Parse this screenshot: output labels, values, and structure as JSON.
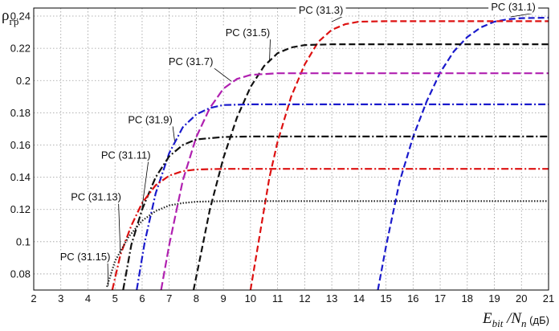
{
  "chart_data": {
    "type": "line",
    "title": "",
    "ylabel": "ρ",
    "ylabel_sub": "гр",
    "xlabel_parts": [
      "E",
      "bit",
      " /N",
      "n",
      " (дБ)"
    ],
    "xlim": [
      2,
      21
    ],
    "ylim": [
      0.07,
      0.245
    ],
    "x_ticks": [
      2,
      3,
      4,
      5,
      6,
      7,
      8,
      9,
      10,
      11,
      12,
      13,
      14,
      15,
      16,
      17,
      18,
      19,
      20,
      21
    ],
    "y_ticks": [
      0.08,
      0.1,
      0.12,
      0.14,
      0.16,
      0.18,
      0.2,
      0.22,
      0.24
    ],
    "y_tick_labels": [
      "0.08",
      "0.1",
      "0.12",
      "0.14",
      "0.16",
      "0.18",
      "0.2",
      "0.22",
      "0.24"
    ],
    "grid": true,
    "series": [
      {
        "name": "РС (31.1)",
        "color": "#1a1acc",
        "dash": "8,4",
        "points": [
          [
            14.7,
            0.07
          ],
          [
            15.0,
            0.097
          ],
          [
            15.5,
            0.137
          ],
          [
            16.0,
            0.165
          ],
          [
            16.5,
            0.187
          ],
          [
            17.0,
            0.205
          ],
          [
            17.5,
            0.218
          ],
          [
            18.0,
            0.227
          ],
          [
            18.5,
            0.233
          ],
          [
            19.0,
            0.2365
          ],
          [
            19.5,
            0.238
          ],
          [
            20.0,
            0.2387
          ],
          [
            21.0,
            0.239
          ]
        ]
      },
      {
        "name": "РС (31.3)",
        "color": "#dd1111",
        "dash": "8,4",
        "points": [
          [
            10.0,
            0.07
          ],
          [
            10.3,
            0.1
          ],
          [
            10.7,
            0.14
          ],
          [
            11.0,
            0.162
          ],
          [
            11.5,
            0.19
          ],
          [
            12.0,
            0.21
          ],
          [
            12.5,
            0.224
          ],
          [
            13.0,
            0.2315
          ],
          [
            13.5,
            0.235
          ],
          [
            14.0,
            0.2365
          ],
          [
            15.0,
            0.2368
          ],
          [
            21.0,
            0.2368
          ]
        ]
      },
      {
        "name": "РС (31.5)",
        "color": "#111111",
        "dash": "8,4",
        "points": [
          [
            7.9,
            0.07
          ],
          [
            8.2,
            0.095
          ],
          [
            8.5,
            0.12
          ],
          [
            9.0,
            0.152
          ],
          [
            9.5,
            0.177
          ],
          [
            10.0,
            0.196
          ],
          [
            10.5,
            0.209
          ],
          [
            11.0,
            0.217
          ],
          [
            11.5,
            0.2205
          ],
          [
            12.0,
            0.222
          ],
          [
            13.0,
            0.2225
          ],
          [
            21.0,
            0.2225
          ]
        ]
      },
      {
        "name": "РС (31.7)",
        "color": "#b020b0",
        "dash": "10,4",
        "points": [
          [
            6.7,
            0.07
          ],
          [
            7.0,
            0.098
          ],
          [
            7.5,
            0.138
          ],
          [
            8.0,
            0.165
          ],
          [
            8.5,
            0.183
          ],
          [
            9.0,
            0.195
          ],
          [
            9.5,
            0.201
          ],
          [
            10.0,
            0.2035
          ],
          [
            11.0,
            0.2045
          ],
          [
            21.0,
            0.2045
          ]
        ]
      },
      {
        "name": "РС (31.9)",
        "color": "#1a1acc",
        "dash": "9,3,2,3",
        "points": [
          [
            5.8,
            0.07
          ],
          [
            6.1,
            0.1
          ],
          [
            6.5,
            0.13
          ],
          [
            7.0,
            0.155
          ],
          [
            7.5,
            0.171
          ],
          [
            8.0,
            0.179
          ],
          [
            8.5,
            0.183
          ],
          [
            9.0,
            0.1848
          ],
          [
            10.0,
            0.1852
          ],
          [
            21.0,
            0.1852
          ]
        ]
      },
      {
        "name": "РС (31.11)",
        "color": "#111111",
        "dash": "9,3,2,3",
        "points": [
          [
            5.3,
            0.07
          ],
          [
            5.6,
            0.098
          ],
          [
            6.0,
            0.12
          ],
          [
            6.5,
            0.14
          ],
          [
            7.0,
            0.153
          ],
          [
            7.5,
            0.16
          ],
          [
            8.0,
            0.1635
          ],
          [
            9.0,
            0.165
          ],
          [
            10.0,
            0.1653
          ],
          [
            21.0,
            0.1653
          ]
        ]
      },
      {
        "name": "РС (31.13)",
        "color": "#dd1111",
        "dash": "9,3,2,3",
        "points": [
          [
            4.9,
            0.07
          ],
          [
            5.2,
            0.092
          ],
          [
            5.6,
            0.11
          ],
          [
            6.0,
            0.124
          ],
          [
            6.5,
            0.135
          ],
          [
            7.0,
            0.141
          ],
          [
            7.5,
            0.1438
          ],
          [
            8.0,
            0.1448
          ],
          [
            9.0,
            0.1452
          ],
          [
            21.0,
            0.1452
          ]
        ]
      },
      {
        "name": "РС (31.15)",
        "color": "#222222",
        "dash": "1.5,2",
        "points": [
          [
            4.7,
            0.072
          ],
          [
            5.0,
            0.088
          ],
          [
            5.5,
            0.103
          ],
          [
            6.0,
            0.113
          ],
          [
            6.5,
            0.119
          ],
          [
            7.0,
            0.1225
          ],
          [
            7.5,
            0.124
          ],
          [
            8.0,
            0.1248
          ],
          [
            9.0,
            0.1252
          ],
          [
            21.0,
            0.1252
          ]
        ]
      }
    ],
    "annotations": [
      {
        "text": "РС (31.1)",
        "x": 19.7,
        "y": 0.2435,
        "ax": 19.6,
        "ay": 0.2395
      },
      {
        "text": "РС (31.3)",
        "x": 12.6,
        "y": 0.2415,
        "ax": 13.0,
        "ay": 0.2365
      },
      {
        "text": "РС (31.5)",
        "x": 9.9,
        "y": 0.2275,
        "ax": 10.7,
        "ay": 0.2115
      },
      {
        "text": "РС (31.7)",
        "x": 7.8,
        "y": 0.2095,
        "ax": 9.3,
        "ay": 0.1995
      },
      {
        "text": "РС (31.9)",
        "x": 6.3,
        "y": 0.1735,
        "ax": 7.2,
        "ay": 0.1625
      },
      {
        "text": "РС (31.11)",
        "x": 5.4,
        "y": 0.1515,
        "ax": 6.0,
        "ay": 0.1215
      },
      {
        "text": "РС (31.13)",
        "x": 4.3,
        "y": 0.1255,
        "ax": 5.2,
        "ay": 0.0925
      },
      {
        "text": "РС (31.15)",
        "x": 3.9,
        "y": 0.0885,
        "ax": 4.75,
        "ay": 0.0725
      }
    ]
  }
}
